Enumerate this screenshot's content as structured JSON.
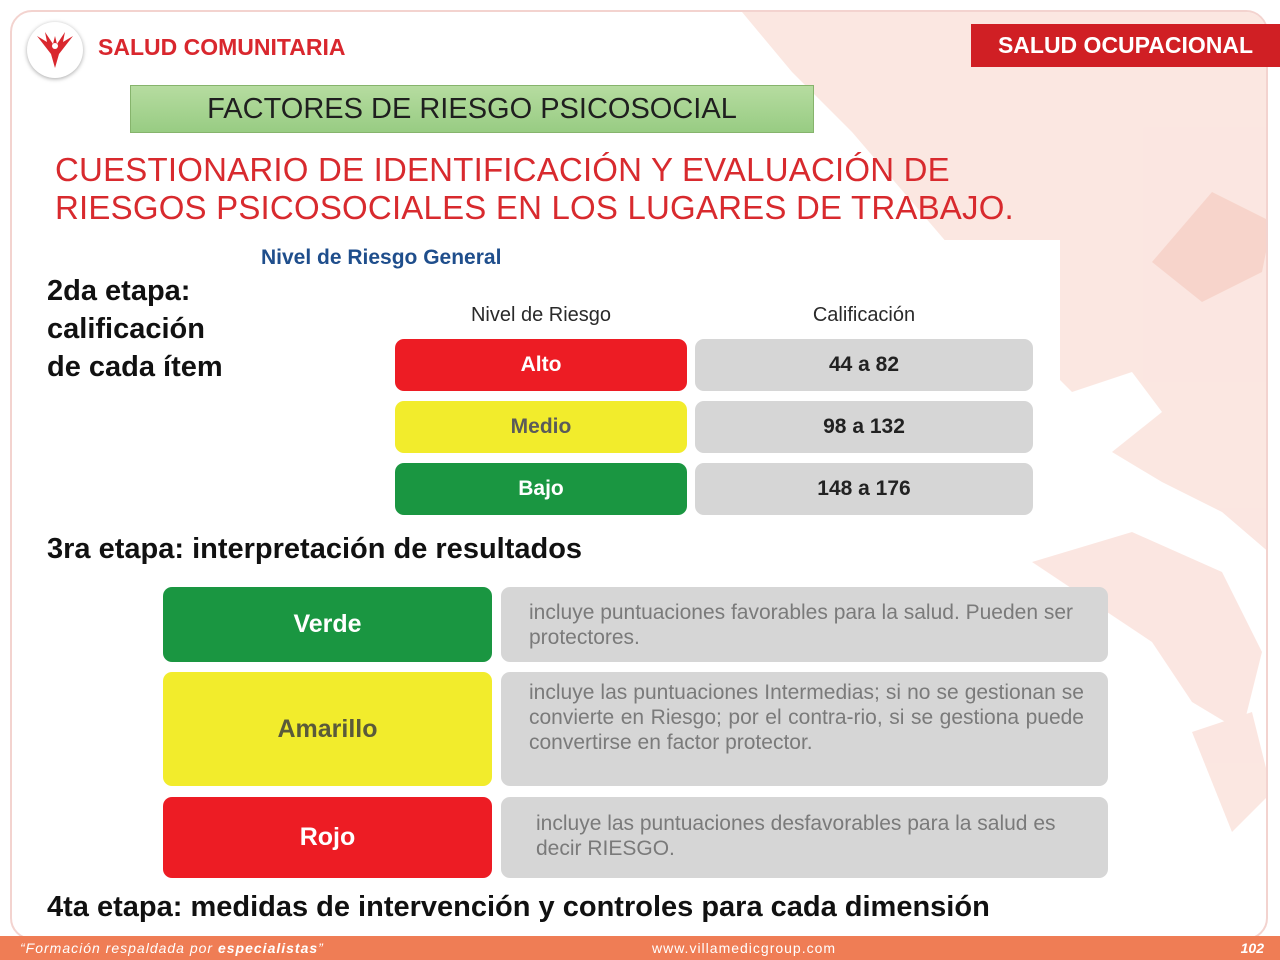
{
  "header": {
    "brand": "SALUD COMUNITARIA",
    "section_badge": "SALUD OCUPACIONAL"
  },
  "subtitle": "FACTORES DE RIESGO PSICOSOCIAL",
  "heading": {
    "line1": "CUESTIONARIO DE IDENTIFICACIÓN Y EVALUACIÓN DE",
    "line2": "RIESGOS PSICOSOCIALES EN LOS LUGARES DE TRABAJO."
  },
  "stage2": {
    "line1": "2da etapa:",
    "line2": "calificación",
    "line3": "de cada ítem"
  },
  "risk_table": {
    "title": "Nivel de Riesgo General",
    "headers": [
      "Nivel de Riesgo",
      "Calificación"
    ],
    "rows": [
      {
        "level": "Alto",
        "range": "44 a 82",
        "color": "#ed1c24"
      },
      {
        "level": "Medio",
        "range": "98 a 132",
        "color": "#f2ec2c"
      },
      {
        "level": "Bajo",
        "range": "148 a 176",
        "color": "#1a9641"
      }
    ]
  },
  "stage3": "3ra etapa: interpretación de resultados",
  "interpretation": [
    {
      "label": "Verde",
      "color": "#1a9641",
      "text": "incluye puntuaciones favorables para la salud. Pueden ser protectores."
    },
    {
      "label": "Amarillo",
      "color": "#f2ec2c",
      "text": "incluye las puntuaciones Intermedias; si no se gestionan se convierte en Riesgo; por el contra-rio, si se gestiona puede convertirse en factor protector."
    },
    {
      "label": "Rojo",
      "color": "#ed1c24",
      "text": "incluye las puntuaciones desfavorables para la salud es decir RIESGO."
    }
  ],
  "stage4": "4ta etapa: medidas de intervención y controles para cada dimensión",
  "footer": {
    "slogan_prefix": "“Formación respaldada por ",
    "slogan_bold": "especialistas",
    "slogan_suffix": "”",
    "website": "www.villamedicgroup.com",
    "page_number": "102"
  }
}
